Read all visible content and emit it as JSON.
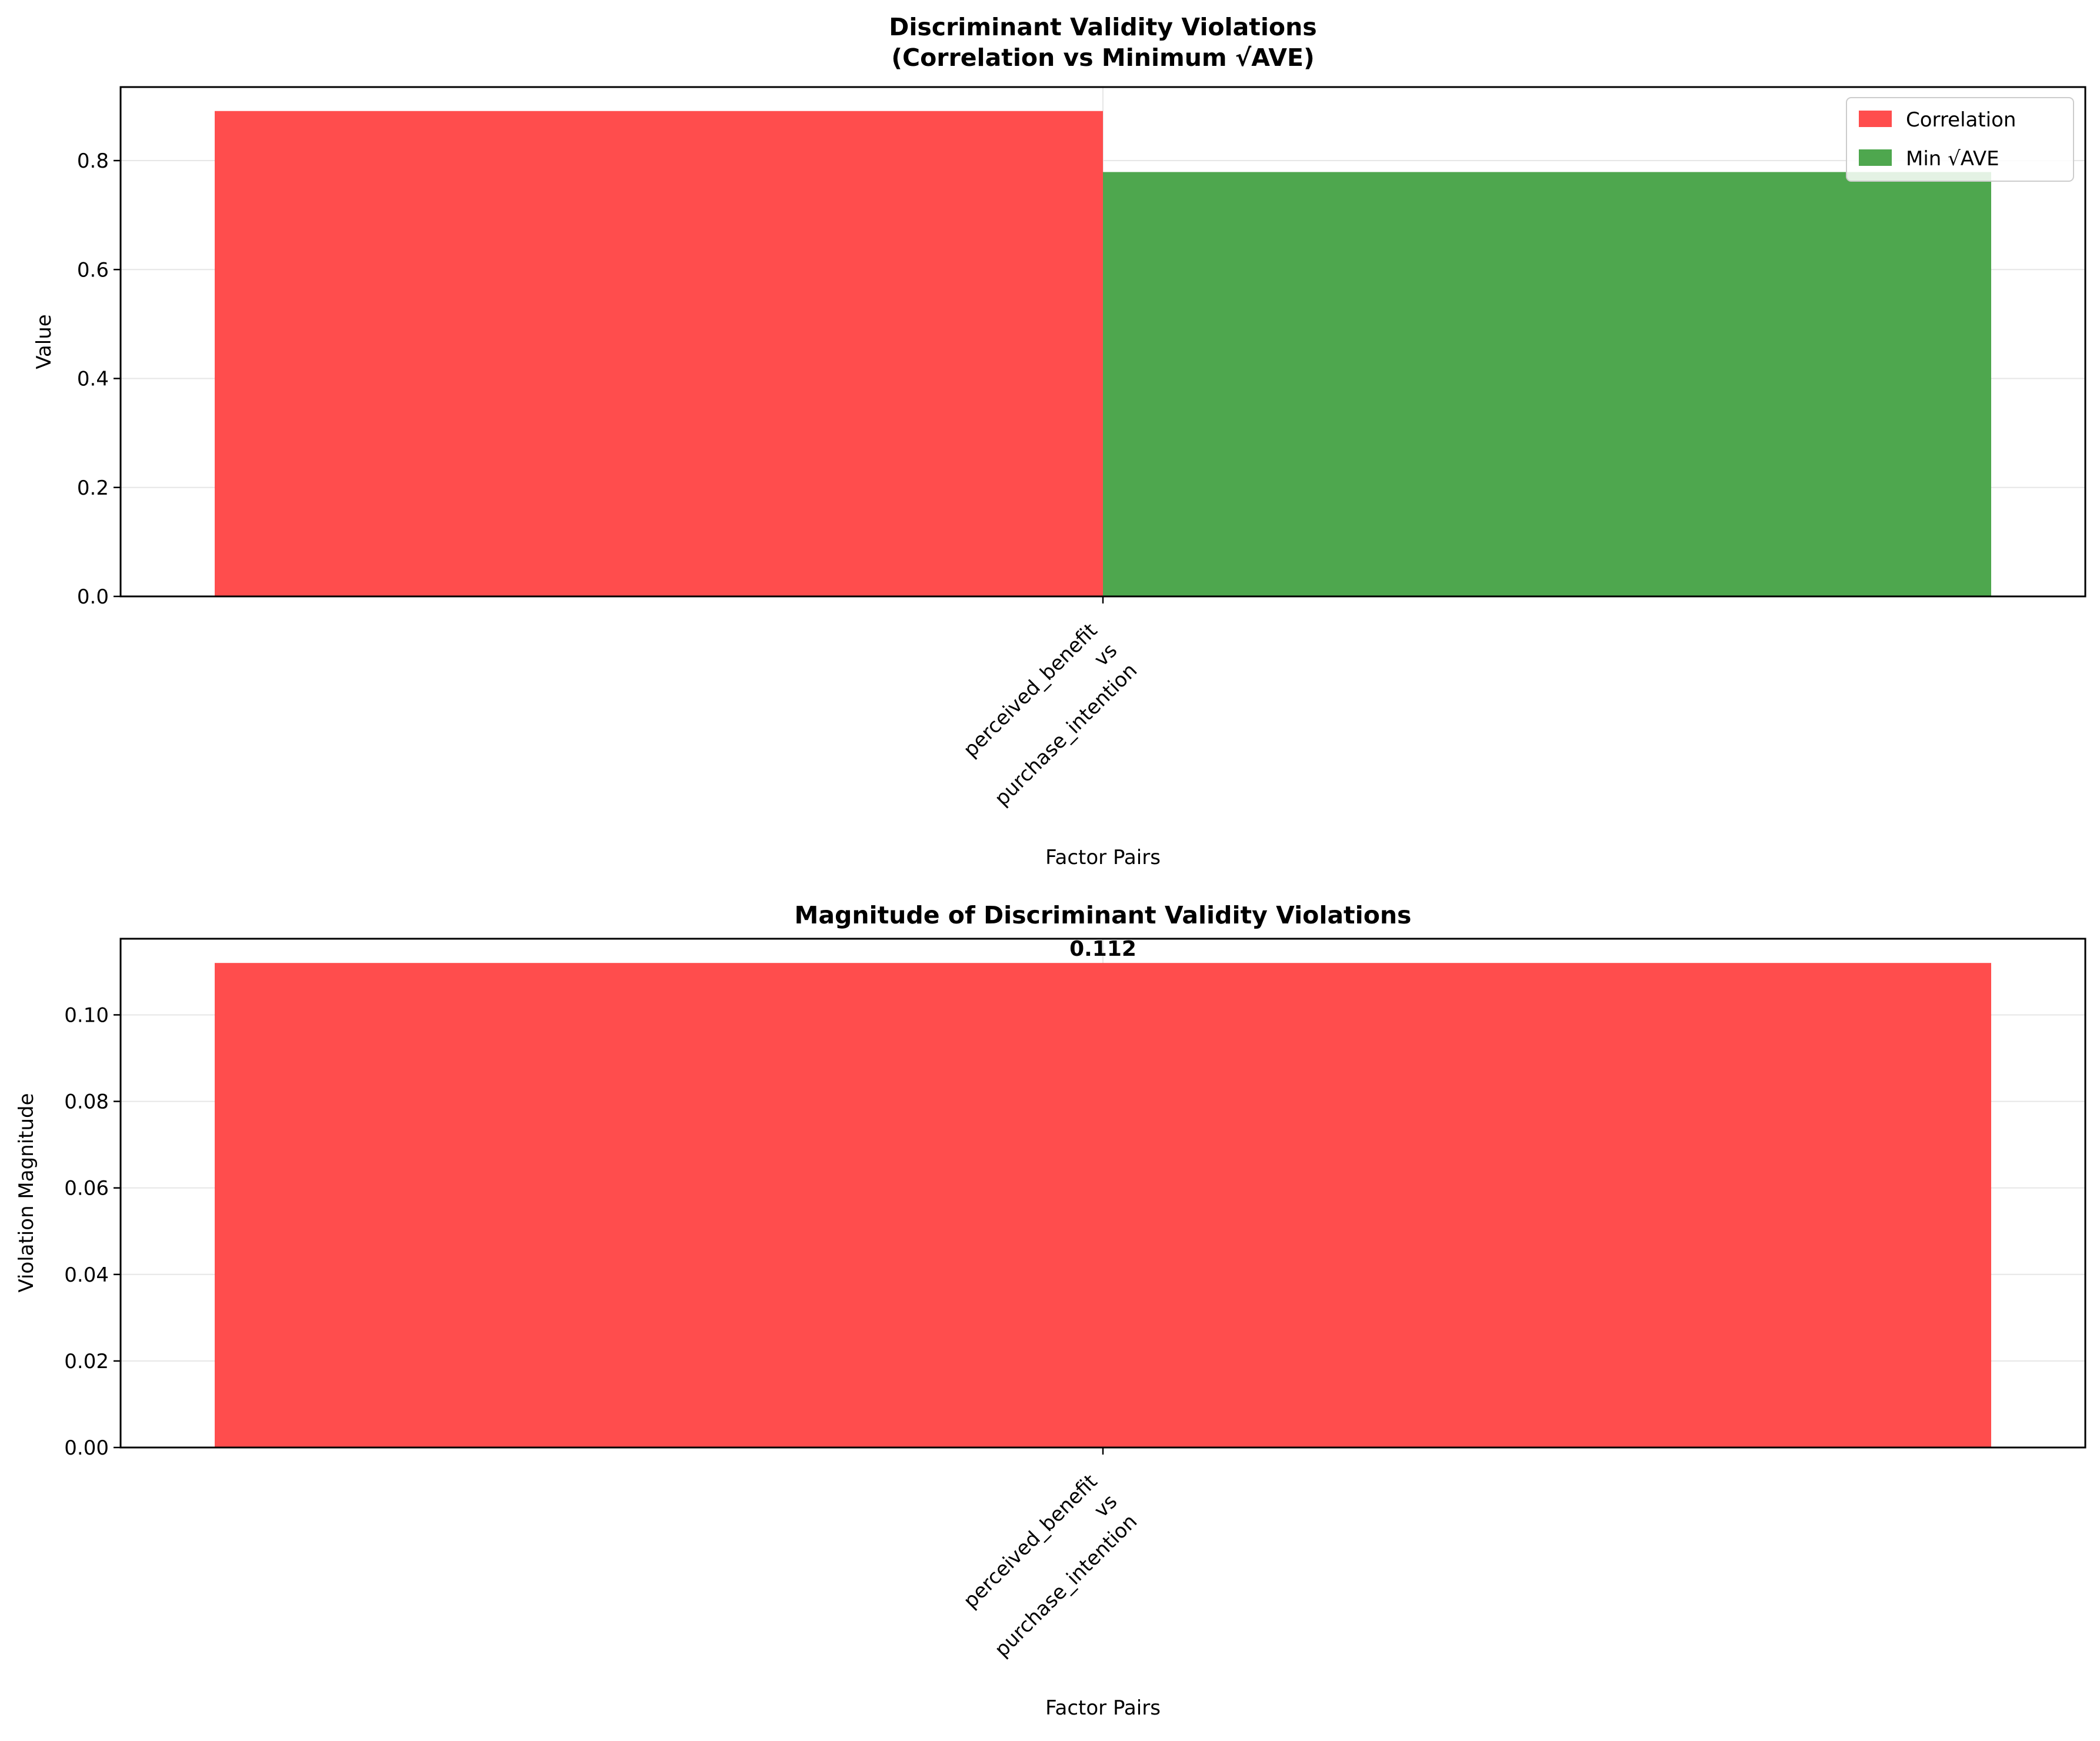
{
  "colors": {
    "correlation": "#ff4d4d",
    "min_sqrt_ave": "#4ea74e",
    "violation": "#ff4d4d",
    "grid": "#e6e6e6",
    "axis": "#000000"
  },
  "chart_data": [
    {
      "type": "bar",
      "title_line1": "Discriminant Validity Violations",
      "title_line2": "(Correlation vs Minimum √AVE)",
      "xlabel": "Factor Pairs",
      "ylabel": "Value",
      "categories": [
        {
          "line1": "perceived_benefit",
          "line2": "vs",
          "line3": "purchase_intention"
        }
      ],
      "series": [
        {
          "name": "Correlation",
          "values": [
            0.891
          ]
        },
        {
          "name": "Min √AVE",
          "values": [
            0.779
          ]
        }
      ],
      "ylim": [
        0,
        0.935
      ],
      "yticks": [
        {
          "value": 0.0,
          "label": "0.0"
        },
        {
          "value": 0.2,
          "label": "0.2"
        },
        {
          "value": 0.4,
          "label": "0.4"
        },
        {
          "value": 0.6,
          "label": "0.6"
        },
        {
          "value": 0.8,
          "label": "0.8"
        }
      ],
      "grid": true,
      "legend": "upper-right"
    },
    {
      "type": "bar",
      "title": "Magnitude of Discriminant Validity Violations",
      "xlabel": "Factor Pairs",
      "ylabel": "Violation Magnitude",
      "categories": [
        {
          "line1": "perceived_benefit",
          "line2": "vs",
          "line3": "purchase_intention"
        }
      ],
      "values": [
        0.112
      ],
      "data_labels": [
        "0.112"
      ],
      "ylim": [
        0,
        0.1176
      ],
      "yticks": [
        {
          "value": 0.0,
          "label": "0.00"
        },
        {
          "value": 0.02,
          "label": "0.02"
        },
        {
          "value": 0.04,
          "label": "0.04"
        },
        {
          "value": 0.06,
          "label": "0.06"
        },
        {
          "value": 0.08,
          "label": "0.08"
        },
        {
          "value": 0.1,
          "label": "0.10"
        }
      ],
      "grid": true
    }
  ]
}
